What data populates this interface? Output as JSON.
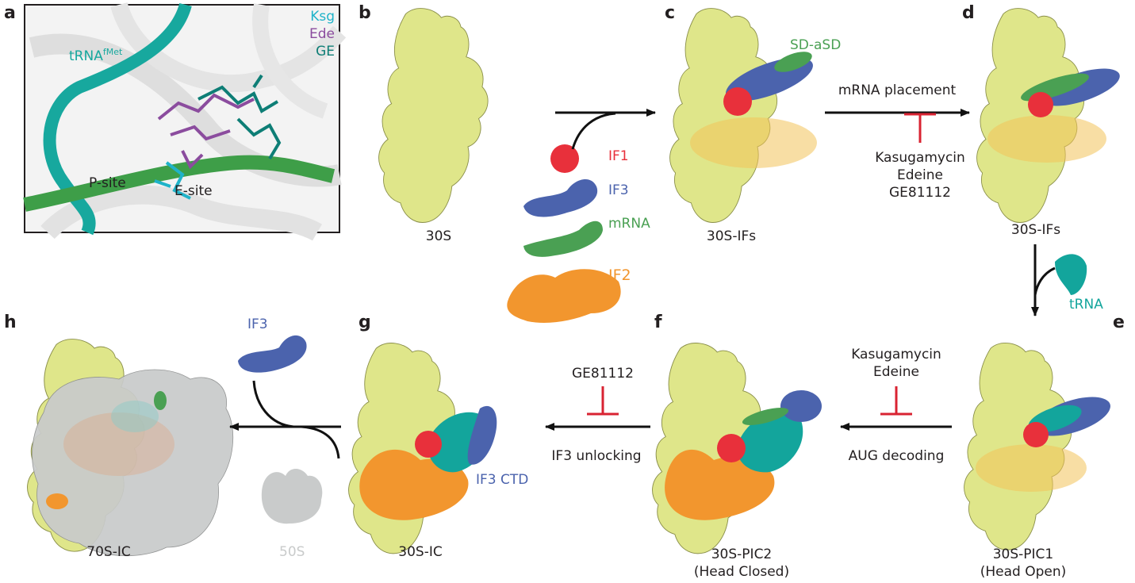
{
  "panel_letters": {
    "a": "a",
    "b": "b",
    "c": "c",
    "d": "d",
    "e": "e",
    "f": "f",
    "g": "g",
    "h": "h"
  },
  "panel_a": {
    "legend": {
      "ksg": "Ksg",
      "ede": "Ede",
      "ge": "GE"
    },
    "trna_base": "tRNA",
    "trna_sup": "fMet",
    "p_site": "P-site",
    "e_site": "E-site",
    "colors": {
      "ksg": "#1fb3c9",
      "ede": "#8b4c9e",
      "ge": "#0e7e76",
      "trna": "#17a89e",
      "mrna": "#3e9e48"
    }
  },
  "states": {
    "s30": "30S",
    "s30_ifs_c": "30S-IFs",
    "s30_ifs_d": "30S-IFs",
    "pic1_line1": "30S-PIC1",
    "pic1_line2": "(Head Open)",
    "pic2_line1": "30S-PIC2",
    "pic2_line2": "(Head Closed)",
    "ic30": "30S-IC",
    "ic70": "70S-IC"
  },
  "factors": {
    "if1": "IF1",
    "if3": "IF3",
    "mrna": "mRNA",
    "if2": "IF2",
    "sd_asd": "SD-aSD",
    "trna": "tRNA",
    "if3_ctd": "IF3 CTD",
    "if3_h": "IF3",
    "s50": "50S"
  },
  "steps": {
    "mrna_placement": "mRNA placement",
    "aug_decoding": "AUG decoding",
    "if3_unlocking": "IF3 unlocking"
  },
  "inhibitors": {
    "cd": [
      "Kasugamycin",
      "Edeine",
      "GE81112"
    ],
    "ef": [
      "Kasugamycin",
      "Edeine"
    ],
    "fg": [
      "GE81112"
    ]
  },
  "colors": {
    "subunit30": "#dfe68a",
    "subunit50": "#c9cbcb",
    "if1": "#e8303b",
    "if3": "#4b63ad",
    "mrna": "#4aa053",
    "if2": "#f2962e",
    "trna": "#13a59c",
    "inhibitor": "#d92332",
    "text": "#231f20"
  }
}
